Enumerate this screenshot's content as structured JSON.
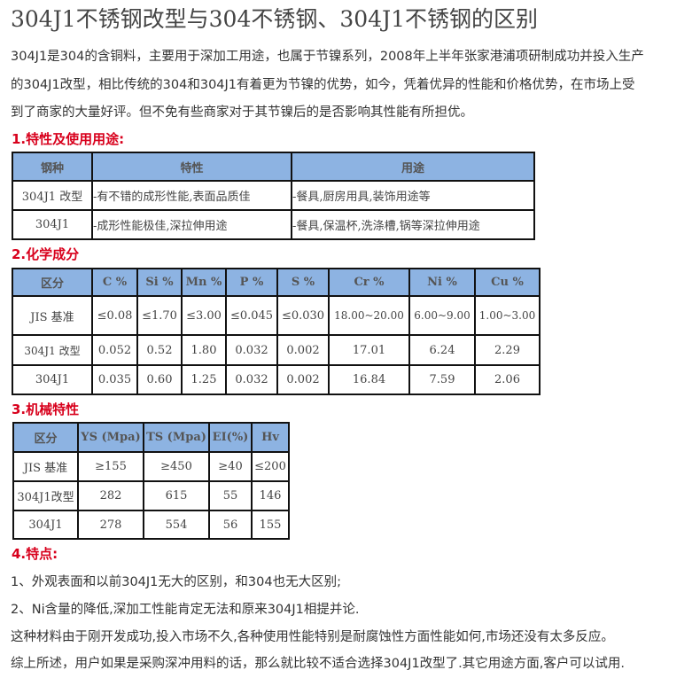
{
  "title": "304J1不锈钢改型与304不锈钢、304J1不锈钢的区别",
  "intro": [
    "304J1是304的含铜料，主要用于深加工用途，也属于节镍系列，2008年上半年张家港浦项研制成功并投入生产",
    "的304J1改型，相比传统的304和304J1有着更为节镍的优势，如今，凭着优异的性能和价格优势，在市场上受",
    "到了商家的大量好评。但不免有些商家对于其节镍后的是否影响其性能有所担优。"
  ],
  "sections": {
    "s1": {
      "heading": "1.特性及使用用途:",
      "headers": [
        "钢种",
        "特性",
        "用途"
      ],
      "rows": [
        [
          "304J1  改型",
          "-有不错的成形性能,表面品质佳",
          "-餐具,厨房用具,装饰用途等"
        ],
        [
          "304J1",
          "-成形性能极佳,深拉伸用途",
          "-餐具,保温杯,洗涤槽,锅等深拉伸用途"
        ]
      ]
    },
    "s2": {
      "heading": "2.化学成分",
      "headers": [
        "区分",
        "C  %",
        "Si  %",
        "Mn  %",
        "P  %",
        "S  %",
        "Cr  %",
        "Ni  %",
        "Cu  %"
      ],
      "rows": [
        [
          "JIS 基准",
          "≤0.08",
          "≤1.70",
          "≤3.00",
          "≤0.045",
          "≤0.030",
          "18.00~20.00",
          "6.00~9.00",
          "1.00~3.00"
        ],
        [
          "304J1  改型",
          "0.052",
          "0.52",
          "1.80",
          "0.032",
          "0.002",
          "17.01",
          "6.24",
          "2.29"
        ],
        [
          "304J1",
          "0.035",
          "0.60",
          "1.25",
          "0.032",
          "0.002",
          "16.84",
          "7.59",
          "2.06"
        ]
      ]
    },
    "s3": {
      "heading": "3.机械特性",
      "headers": [
        "区分",
        "YS (Mpa)",
        "TS (Mpa)",
        "EI(%)",
        "Hv"
      ],
      "rows": [
        [
          "JIS 基准",
          "≥155",
          "≥450",
          "≥40",
          "≤200"
        ],
        [
          "304J1改型",
          "282",
          "615",
          "55",
          "146"
        ],
        [
          "304J1",
          "278",
          "554",
          "56",
          "155"
        ]
      ]
    },
    "s4": {
      "heading": "4.特点:",
      "lines": [
        "1、外观表面和以前304J1无大的区别，和304也无大区别;",
        "2、Ni含量的降低,深加工性能肯定无法和原来304J1相提并论.",
        "这种材料由于刚开发成功,投入市场不久,各种使用性能特别是耐腐蚀性方面性能如何,市场还没有太多反应。",
        "综上所述，用户如果是采购深冲用料的话，那么就比较不适合选择304J1改型了.其它用途方面,客户可以试用."
      ]
    }
  }
}
